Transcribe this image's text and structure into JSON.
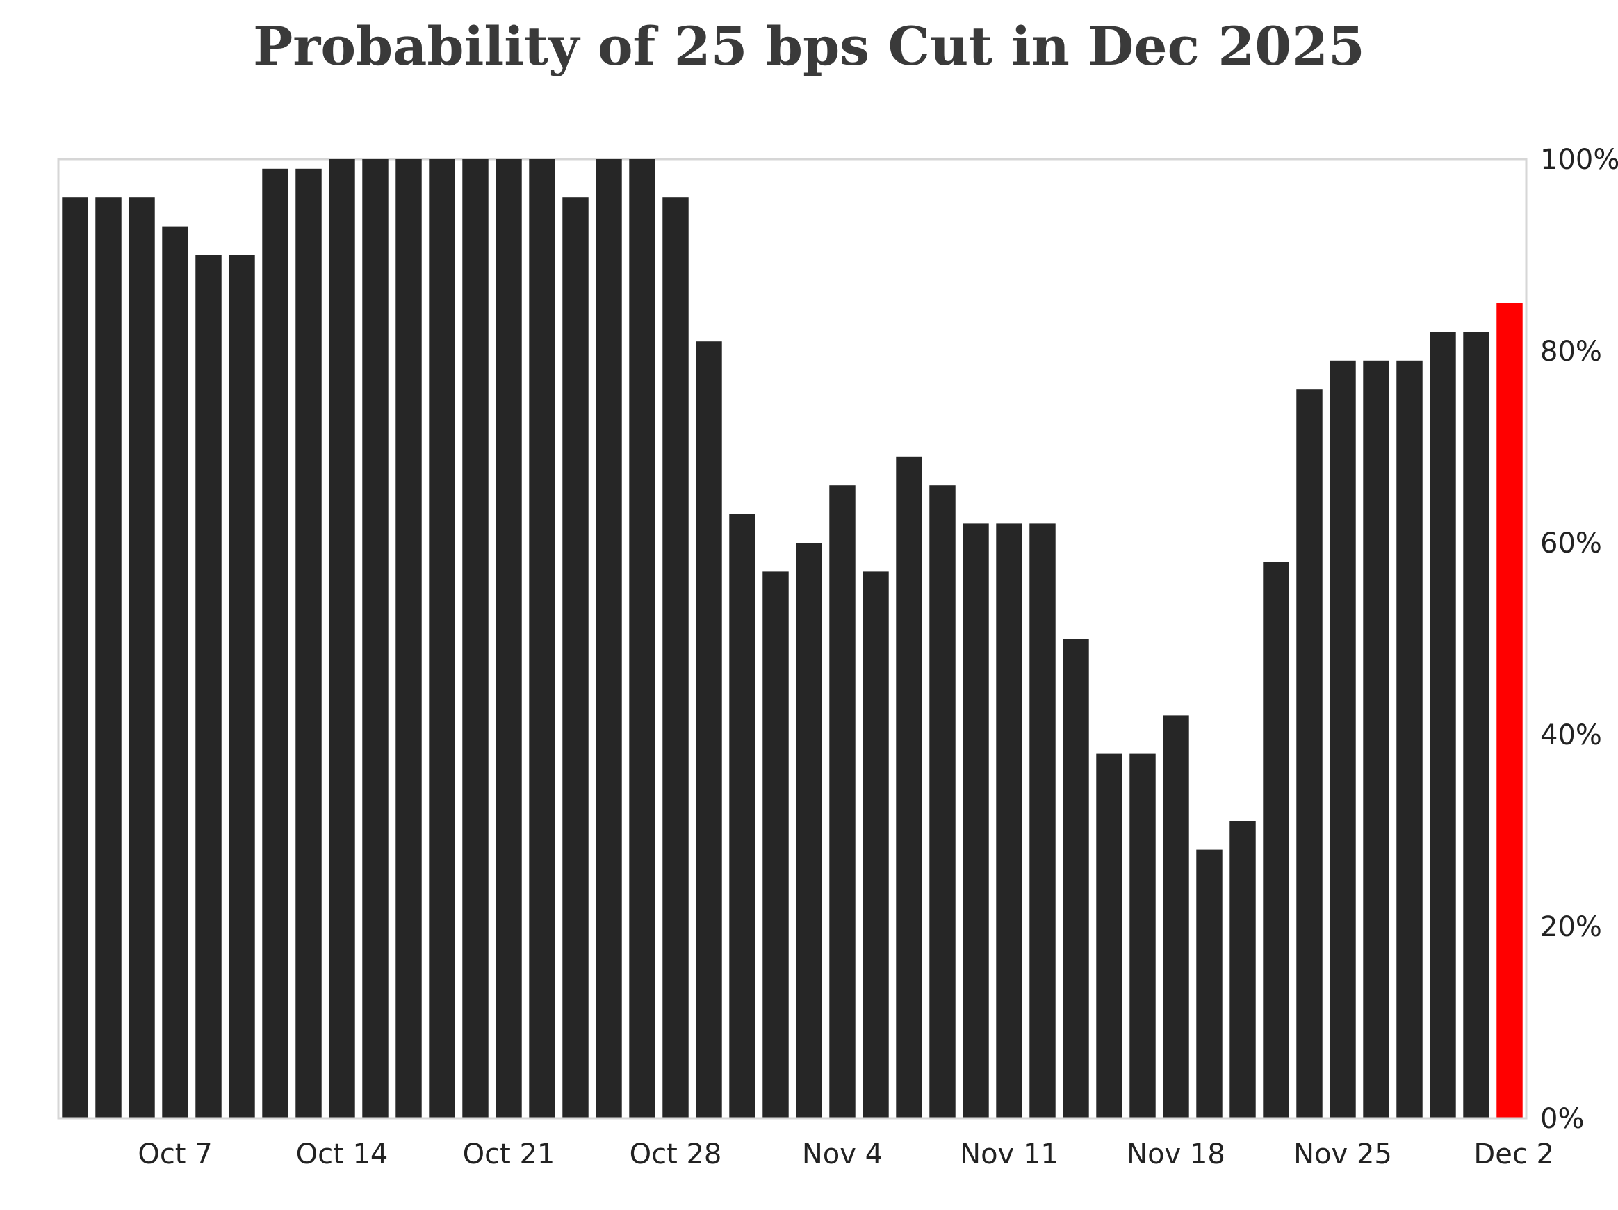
{
  "chart_data": {
    "type": "bar",
    "title": "Probability of 25 bps Cut in Dec 2025",
    "xlabel": "",
    "ylabel": "",
    "ylim": [
      0,
      100
    ],
    "y_ticks": [
      "0%",
      "20%",
      "40%",
      "60%",
      "80%",
      "100%"
    ],
    "y_axis_position": "right",
    "grid": false,
    "x_tick_labels": [
      {
        "label": "Oct 7",
        "index": 3
      },
      {
        "label": "Oct 14",
        "index": 8
      },
      {
        "label": "Oct 21",
        "index": 13
      },
      {
        "label": "Oct 28",
        "index": 18
      },
      {
        "label": "Nov 4",
        "index": 23
      },
      {
        "label": "Nov 11",
        "index": 28
      },
      {
        "label": "Nov 18",
        "index": 33
      },
      {
        "label": "Nov 25",
        "index": 38
      },
      {
        "label": "Dec 2",
        "index": 43
      }
    ],
    "bar_color": "#262626",
    "highlight_color": "#ff0000",
    "highlight_index": 43,
    "values": [
      96,
      96,
      96,
      93,
      90,
      90,
      99,
      99,
      100,
      100,
      100,
      100,
      100,
      100,
      100,
      96,
      100,
      100,
      96,
      81,
      63,
      57,
      60,
      66,
      57,
      69,
      66,
      62,
      62,
      62,
      50,
      38,
      38,
      42,
      28,
      31,
      58,
      76,
      79,
      79,
      79,
      82,
      82,
      85
    ]
  }
}
